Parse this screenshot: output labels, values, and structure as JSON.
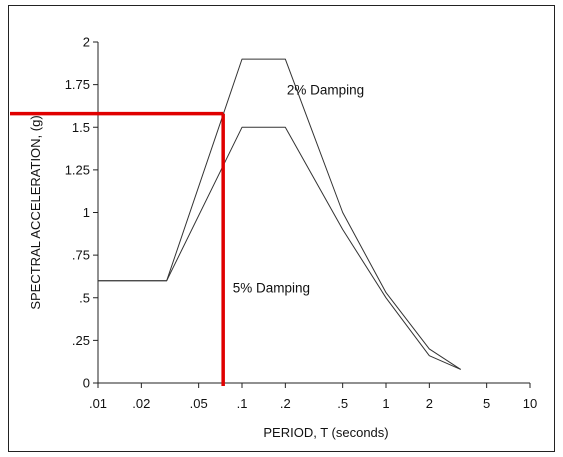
{
  "chart_data": {
    "type": "line",
    "xscale": "log",
    "xlim": [
      0.01,
      10
    ],
    "ylim": [
      0,
      2
    ],
    "xlabel": "PERIOD, T (seconds)",
    "ylabel": "SPECTRAL ACCELERATION, (g)",
    "x_ticks": [
      {
        "value": 0.01,
        "label": ".01"
      },
      {
        "value": 0.02,
        "label": ".02"
      },
      {
        "value": 0.05,
        "label": ".05"
      },
      {
        "value": 0.1,
        "label": ".1"
      },
      {
        "value": 0.2,
        "label": ".2"
      },
      {
        "value": 0.5,
        "label": ".5"
      },
      {
        "value": 1,
        "label": "1"
      },
      {
        "value": 2,
        "label": "2"
      },
      {
        "value": 5,
        "label": "5"
      },
      {
        "value": 10,
        "label": "10"
      }
    ],
    "y_ticks": [
      {
        "value": 0,
        "label": "0"
      },
      {
        "value": 0.25,
        "label": ".25"
      },
      {
        "value": 0.5,
        "label": ".5"
      },
      {
        "value": 0.75,
        "label": ".75"
      },
      {
        "value": 1,
        "label": "1"
      },
      {
        "value": 1.25,
        "label": "1.25"
      },
      {
        "value": 1.5,
        "label": "1.5"
      },
      {
        "value": 1.75,
        "label": "1.75"
      },
      {
        "value": 2,
        "label": "2"
      }
    ],
    "series": [
      {
        "name": "2% Damping",
        "color": "#333333",
        "points": [
          {
            "x": 0.01,
            "y": 0.6
          },
          {
            "x": 0.03,
            "y": 0.6
          },
          {
            "x": 0.1,
            "y": 1.9
          },
          {
            "x": 0.2,
            "y": 1.9
          },
          {
            "x": 0.5,
            "y": 1.0
          },
          {
            "x": 1.0,
            "y": 0.53
          },
          {
            "x": 2.0,
            "y": 0.2
          },
          {
            "x": 3.3,
            "y": 0.08
          }
        ]
      },
      {
        "name": "5% Damping",
        "color": "#333333",
        "points": [
          {
            "x": 0.01,
            "y": 0.6
          },
          {
            "x": 0.03,
            "y": 0.6
          },
          {
            "x": 0.1,
            "y": 1.5
          },
          {
            "x": 0.2,
            "y": 1.5
          },
          {
            "x": 0.5,
            "y": 0.9
          },
          {
            "x": 1.0,
            "y": 0.5
          },
          {
            "x": 2.0,
            "y": 0.16
          },
          {
            "x": 3.3,
            "y": 0.08
          }
        ]
      }
    ],
    "annotations": [
      {
        "text": "2% Damping",
        "x": 0.38,
        "y": 1.72
      },
      {
        "text": "5% Damping",
        "x": 0.16,
        "y": 0.56
      }
    ],
    "highlight": {
      "color": "#e00000",
      "x": 0.074,
      "y": 1.58,
      "x_start": 0.01
    },
    "grid": false,
    "legend": "none"
  }
}
